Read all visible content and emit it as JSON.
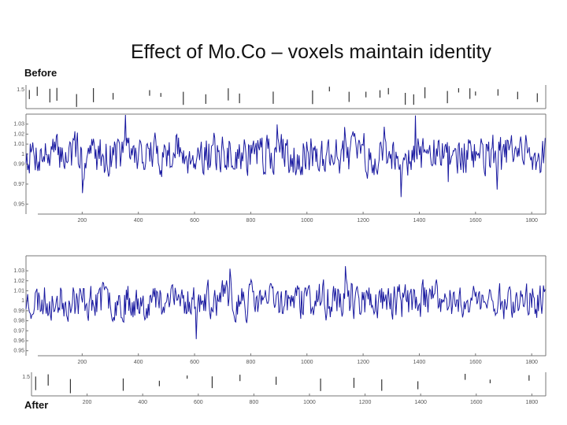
{
  "title": "Effect of Mo.Co – voxels maintain identity",
  "label_before": "Before",
  "label_after": "After",
  "colors": {
    "series": "#1a1aa0",
    "axis": "#777777",
    "spike": "#333333"
  },
  "chart_data": [
    {
      "type": "line",
      "name": "before",
      "title": "",
      "xlabel": "",
      "ylabel": "",
      "xlim": [
        0,
        1850
      ],
      "ylim": [
        0.94,
        1.04
      ],
      "xticks": [
        200,
        400,
        600,
        800,
        1000,
        1200,
        1400,
        1600,
        1800
      ],
      "xtick_labels": [
        "200",
        "400",
        "600",
        "800",
        "1000",
        "1200",
        "1400",
        "1600",
        "1800"
      ],
      "yticks": [
        0.95,
        0.97,
        0.99,
        1,
        1.01,
        1.02,
        1.03
      ],
      "ytick_labels": [
        "0.95",
        "0.97",
        "0.99",
        "1",
        "1.01",
        "1.02",
        "1.03"
      ],
      "series": [
        {
          "name": "voxel timecourse",
          "n_points": 1850,
          "mean": 1.0,
          "amplitude": 0.02,
          "seed": 7
        }
      ]
    },
    {
      "type": "line",
      "name": "after",
      "title": "",
      "xlabel": "",
      "ylabel": "",
      "xlim": [
        0,
        1850
      ],
      "ylim": [
        0.945,
        1.045
      ],
      "xticks": [
        200,
        400,
        600,
        800,
        1000,
        1200,
        1400,
        1600,
        1800
      ],
      "xtick_labels": [
        "200",
        "400",
        "600",
        "800",
        "1000",
        "1200",
        "1400",
        "1600",
        "1800"
      ],
      "yticks": [
        0.95,
        0.96,
        0.97,
        0.98,
        0.99,
        1,
        1.01,
        1.02,
        1.03
      ],
      "ytick_labels": [
        "0.95",
        "0.96",
        "0.97",
        "0.98",
        "0.99",
        "1",
        "1.01",
        "1.02",
        "1.03"
      ],
      "series": [
        {
          "name": "voxel timecourse",
          "n_points": 1850,
          "mean": 1.0,
          "amplitude": 0.018,
          "seed": 23
        }
      ]
    },
    {
      "type": "bar",
      "name": "motion-before",
      "xlim": [
        0,
        1850
      ],
      "ytick_labels": [
        "1.5"
      ],
      "spikes_x": [
        12,
        40,
        85,
        110,
        180,
        240,
        310,
        440,
        480,
        560,
        640,
        720,
        760,
        880,
        1020,
        1080,
        1150,
        1210,
        1260,
        1290,
        1350,
        1380,
        1420,
        1500,
        1540,
        1580,
        1600,
        1680,
        1750,
        1820
      ]
    },
    {
      "type": "bar",
      "name": "motion-after",
      "xlim": [
        0,
        1850
      ],
      "xticks": [
        200,
        400,
        600,
        800,
        1000,
        1200,
        1400,
        1600,
        1800
      ],
      "xtick_labels": [
        "200",
        "400",
        "600",
        "800",
        "1000",
        "1200",
        "1400",
        "1600",
        "1800"
      ],
      "ytick_labels": [
        "1.5"
      ],
      "spikes_x": [
        15,
        60,
        140,
        330,
        460,
        560,
        650,
        750,
        880,
        1040,
        1160,
        1260,
        1390,
        1560,
        1650,
        1790
      ]
    }
  ]
}
